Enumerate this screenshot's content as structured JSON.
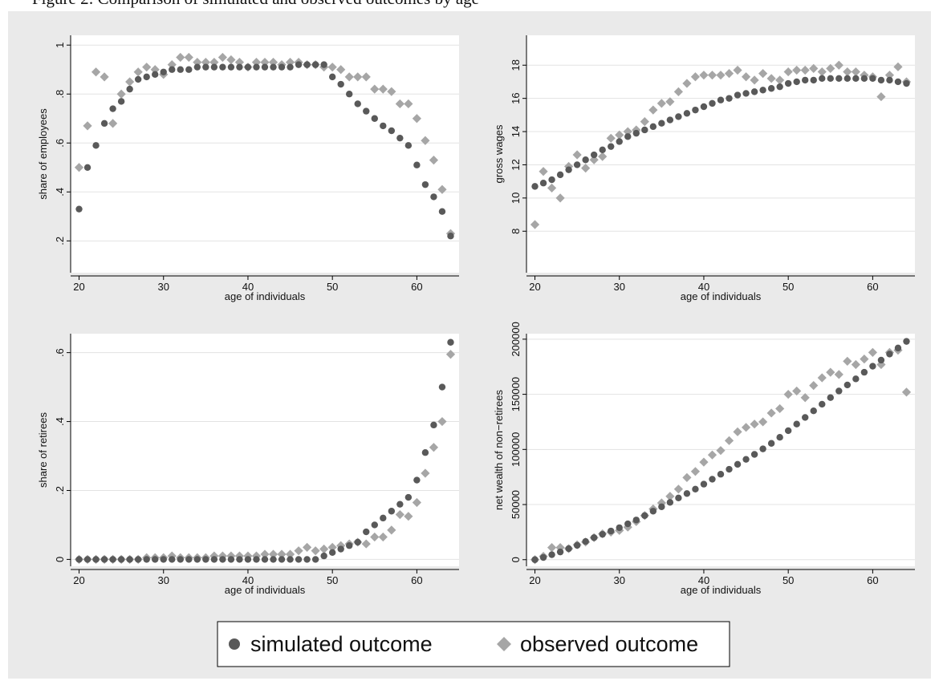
{
  "caption": "Figure 2: Comparison of simulated and observed outcomes by age",
  "colors": {
    "simulated": "#595959",
    "observed": "#a6a6a6",
    "background": "#eaeaea",
    "plot_bg": "#ffffff",
    "grid": "#e3e3e3",
    "frame": "#000000"
  },
  "legend": {
    "position": "bottom-center",
    "simulated": "simulated outcome",
    "observed": "observed outcome",
    "simulated_marker": "circle",
    "observed_marker": "diamond"
  },
  "chart_data": [
    {
      "type": "scatter",
      "ylabel": "share of employees",
      "xlabel": "age of individuals",
      "xlim": [
        19,
        65
      ],
      "ylim": [
        0.07,
        1.04
      ],
      "xticks": [
        20,
        30,
        40,
        50,
        60
      ],
      "yticks": [
        0.2,
        0.4,
        0.6,
        0.8,
        1
      ],
      "yticklabels": [
        ".2",
        ".4",
        ".6",
        ".8",
        "1"
      ],
      "grid": true,
      "x": [
        20,
        21,
        22,
        23,
        24,
        25,
        26,
        27,
        28,
        29,
        30,
        31,
        32,
        33,
        34,
        35,
        36,
        37,
        38,
        39,
        40,
        41,
        42,
        43,
        44,
        45,
        46,
        47,
        48,
        49,
        50,
        51,
        52,
        53,
        54,
        55,
        56,
        57,
        58,
        59,
        60,
        61,
        62,
        63,
        64
      ],
      "series": [
        {
          "name": "simulated outcome",
          "marker": "circle",
          "values": [
            0.33,
            0.5,
            0.59,
            0.68,
            0.74,
            0.77,
            0.82,
            0.86,
            0.87,
            0.88,
            0.89,
            0.9,
            0.9,
            0.9,
            0.91,
            0.91,
            0.91,
            0.91,
            0.91,
            0.91,
            0.91,
            0.91,
            0.91,
            0.91,
            0.91,
            0.91,
            0.92,
            0.92,
            0.92,
            0.92,
            0.87,
            0.84,
            0.8,
            0.76,
            0.73,
            0.7,
            0.67,
            0.65,
            0.62,
            0.59,
            0.51,
            0.43,
            0.38,
            0.32,
            0.22
          ]
        },
        {
          "name": "observed outcome",
          "marker": "diamond",
          "values": [
            0.5,
            0.67,
            0.89,
            0.87,
            0.68,
            0.8,
            0.85,
            0.89,
            0.91,
            0.9,
            0.88,
            0.92,
            0.95,
            0.95,
            0.93,
            0.93,
            0.93,
            0.95,
            0.94,
            0.93,
            0.91,
            0.93,
            0.93,
            0.93,
            0.92,
            0.93,
            0.93,
            0.92,
            0.92,
            0.91,
            0.91,
            0.9,
            0.87,
            0.87,
            0.87,
            0.82,
            0.82,
            0.81,
            0.76,
            0.76,
            0.7,
            0.61,
            0.53,
            0.41,
            0.23
          ]
        }
      ]
    },
    {
      "type": "scatter",
      "ylabel": "gross wages",
      "xlabel": "age of individuals",
      "xlim": [
        19,
        65
      ],
      "ylim": [
        5.5,
        19.8
      ],
      "xticks": [
        20,
        30,
        40,
        50,
        60
      ],
      "yticks": [
        8,
        10,
        12,
        14,
        16,
        18
      ],
      "yticklabels": [
        "8",
        "10",
        "12",
        "14",
        "16",
        "18"
      ],
      "grid": true,
      "x": [
        20,
        21,
        22,
        23,
        24,
        25,
        26,
        27,
        28,
        29,
        30,
        31,
        32,
        33,
        34,
        35,
        36,
        37,
        38,
        39,
        40,
        41,
        42,
        43,
        44,
        45,
        46,
        47,
        48,
        49,
        50,
        51,
        52,
        53,
        54,
        55,
        56,
        57,
        58,
        59,
        60,
        61,
        62,
        63,
        64
      ],
      "series": [
        {
          "name": "simulated outcome",
          "marker": "circle",
          "values": [
            10.7,
            10.9,
            11.1,
            11.4,
            11.7,
            12.0,
            12.3,
            12.6,
            12.9,
            13.1,
            13.4,
            13.7,
            13.9,
            14.1,
            14.3,
            14.5,
            14.7,
            14.9,
            15.1,
            15.3,
            15.5,
            15.7,
            15.9,
            16.0,
            16.2,
            16.3,
            16.4,
            16.5,
            16.6,
            16.7,
            16.9,
            17.0,
            17.1,
            17.1,
            17.2,
            17.2,
            17.2,
            17.2,
            17.2,
            17.2,
            17.2,
            17.1,
            17.1,
            17.0,
            16.9
          ]
        },
        {
          "name": "observed outcome",
          "marker": "diamond",
          "values": [
            8.4,
            11.6,
            10.6,
            10.0,
            11.9,
            12.6,
            11.8,
            12.3,
            12.5,
            13.6,
            13.8,
            14.0,
            14.1,
            14.6,
            15.3,
            15.7,
            15.8,
            16.4,
            16.9,
            17.3,
            17.4,
            17.4,
            17.4,
            17.5,
            17.7,
            17.3,
            17.1,
            17.5,
            17.2,
            17.1,
            17.6,
            17.7,
            17.7,
            17.8,
            17.6,
            17.8,
            18.0,
            17.6,
            17.6,
            17.4,
            17.3,
            16.1,
            17.4,
            17.9,
            17.0
          ]
        }
      ]
    },
    {
      "type": "scatter",
      "ylabel": "share of retirees",
      "xlabel": "age of individuals",
      "xlim": [
        19,
        65
      ],
      "ylim": [
        -0.02,
        0.655
      ],
      "xticks": [
        20,
        30,
        40,
        50,
        60
      ],
      "yticks": [
        0,
        0.2,
        0.4,
        0.6
      ],
      "yticklabels": [
        "0",
        ".2",
        ".4",
        ".6"
      ],
      "grid": true,
      "x": [
        20,
        21,
        22,
        23,
        24,
        25,
        26,
        27,
        28,
        29,
        30,
        31,
        32,
        33,
        34,
        35,
        36,
        37,
        38,
        39,
        40,
        41,
        42,
        43,
        44,
        45,
        46,
        47,
        48,
        49,
        50,
        51,
        52,
        53,
        54,
        55,
        56,
        57,
        58,
        59,
        60,
        61,
        62,
        63,
        64
      ],
      "series": [
        {
          "name": "simulated outcome",
          "marker": "circle",
          "values": [
            0,
            0,
            0,
            0,
            0,
            0,
            0,
            0,
            0,
            0,
            0,
            0,
            0,
            0,
            0,
            0,
            0,
            0,
            0,
            0,
            0,
            0,
            0,
            0,
            0,
            0,
            0,
            0,
            0,
            0.01,
            0.02,
            0.03,
            0.04,
            0.05,
            0.08,
            0.1,
            0.12,
            0.14,
            0.16,
            0.18,
            0.23,
            0.31,
            0.39,
            0.5,
            0.63
          ]
        },
        {
          "name": "observed outcome",
          "marker": "diamond",
          "values": [
            0,
            0,
            0,
            0,
            0,
            0,
            0,
            0,
            0.005,
            0.005,
            0.005,
            0.01,
            0.005,
            0.005,
            0.005,
            0.005,
            0.01,
            0.01,
            0.01,
            0.01,
            0.01,
            0.01,
            0.015,
            0.015,
            0.015,
            0.015,
            0.025,
            0.035,
            0.025,
            0.03,
            0.035,
            0.04,
            0.045,
            0.05,
            0.045,
            0.065,
            0.065,
            0.085,
            0.13,
            0.125,
            0.165,
            0.25,
            0.325,
            0.4,
            0.595
          ]
        }
      ]
    },
    {
      "type": "scatter",
      "ylabel": "net wealth of non−retirees",
      "xlabel": "age of individuals",
      "xlim": [
        19,
        65
      ],
      "ylim": [
        -6000,
        205000
      ],
      "xticks": [
        20,
        30,
        40,
        50,
        60
      ],
      "yticks": [
        0,
        50000,
        100000,
        150000,
        200000
      ],
      "yticklabels": [
        "0",
        "50000",
        "100000",
        "150000",
        "200000"
      ],
      "grid": true,
      "x": [
        20,
        21,
        22,
        23,
        24,
        25,
        26,
        27,
        28,
        29,
        30,
        31,
        32,
        33,
        34,
        35,
        36,
        37,
        38,
        39,
        40,
        41,
        42,
        43,
        44,
        45,
        46,
        47,
        48,
        49,
        50,
        51,
        52,
        53,
        54,
        55,
        56,
        57,
        58,
        59,
        60,
        61,
        62,
        63,
        64
      ],
      "series": [
        {
          "name": "simulated outcome",
          "marker": "circle",
          "values": [
            0,
            2000,
            4500,
            7000,
            10000,
            13000,
            16500,
            20000,
            23000,
            26000,
            29000,
            32500,
            36000,
            40000,
            44000,
            48000,
            52000,
            56000,
            60000,
            64000,
            68500,
            73000,
            77500,
            82000,
            86500,
            91000,
            95500,
            100500,
            105500,
            111000,
            117000,
            123000,
            129000,
            135000,
            141000,
            147000,
            153000,
            158500,
            164000,
            170000,
            175500,
            181000,
            186500,
            192000,
            198000
          ]
        },
        {
          "name": "observed outcome",
          "marker": "diamond",
          "values": [
            0,
            3000,
            11000,
            11000,
            10000,
            13500,
            16000,
            20000,
            23500,
            25000,
            26500,
            29500,
            34500,
            40000,
            46000,
            51500,
            57500,
            64000,
            74500,
            80000,
            88500,
            95000,
            99000,
            108000,
            116000,
            120000,
            123000,
            125000,
            133000,
            137000,
            150000,
            153000,
            147000,
            158000,
            165000,
            170000,
            168000,
            180000,
            177000,
            182000,
            188000,
            177000,
            188000,
            190000,
            152000
          ]
        }
      ]
    }
  ]
}
